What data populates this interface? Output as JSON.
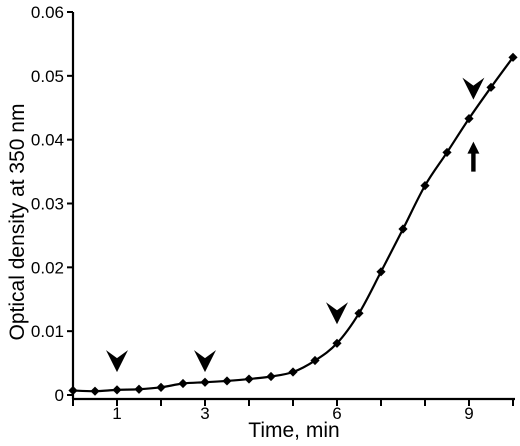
{
  "chart_data": {
    "type": "line",
    "title": "",
    "xlabel": "Time, min",
    "ylabel": "Optical density  at 350 nm",
    "xlim": [
      0,
      10
    ],
    "ylim": [
      0,
      0.06
    ],
    "x_ticks": [
      {
        "value": 1,
        "label": "1"
      },
      {
        "value": 3,
        "label": "3"
      },
      {
        "value": 6,
        "label": "6"
      },
      {
        "value": 9,
        "label": "9"
      }
    ],
    "x_minor_ticks": [
      0,
      2,
      4,
      5,
      7,
      8,
      10
    ],
    "y_ticks": [
      {
        "value": 0,
        "label": "0"
      },
      {
        "value": 0.01,
        "label": "0.01"
      },
      {
        "value": 0.02,
        "label": "0.02"
      },
      {
        "value": 0.03,
        "label": "0.03"
      },
      {
        "value": 0.04,
        "label": "0.04"
      },
      {
        "value": 0.05,
        "label": "0.05"
      },
      {
        "value": 0.06,
        "label": "0.06"
      }
    ],
    "grid": false,
    "series": [
      {
        "color": "#000000",
        "marker": "diamond",
        "points": [
          {
            "x": 0.0,
            "y": 0.0007
          },
          {
            "x": 0.5,
            "y": 0.0006
          },
          {
            "x": 1.0,
            "y": 0.0008
          },
          {
            "x": 1.5,
            "y": 0.0009
          },
          {
            "x": 2.0,
            "y": 0.0012
          },
          {
            "x": 2.5,
            "y": 0.0018
          },
          {
            "x": 3.0,
            "y": 0.002
          },
          {
            "x": 3.5,
            "y": 0.0022
          },
          {
            "x": 4.0,
            "y": 0.0025
          },
          {
            "x": 4.5,
            "y": 0.0029
          },
          {
            "x": 5.0,
            "y": 0.0036
          },
          {
            "x": 5.5,
            "y": 0.0054
          },
          {
            "x": 6.0,
            "y": 0.0081
          },
          {
            "x": 6.5,
            "y": 0.0128
          },
          {
            "x": 7.0,
            "y": 0.0193
          },
          {
            "x": 7.5,
            "y": 0.026
          },
          {
            "x": 8.0,
            "y": 0.0328
          },
          {
            "x": 8.5,
            "y": 0.038
          },
          {
            "x": 9.0,
            "y": 0.0433
          },
          {
            "x": 9.5,
            "y": 0.0482
          },
          {
            "x": 10.0,
            "y": 0.0529
          }
        ]
      }
    ],
    "annotations": [
      {
        "type": "arrowhead",
        "direction": "down",
        "x": 1.0,
        "y": 0.0053
      },
      {
        "type": "arrowhead",
        "direction": "down",
        "x": 3.0,
        "y": 0.0053
      },
      {
        "type": "arrowhead",
        "direction": "down",
        "x": 6.0,
        "y": 0.0128
      },
      {
        "type": "arrowhead",
        "direction": "down",
        "x": 9.1,
        "y": 0.048
      },
      {
        "type": "arrow",
        "direction": "up",
        "x": 9.1,
        "y": 0.0375
      }
    ]
  }
}
